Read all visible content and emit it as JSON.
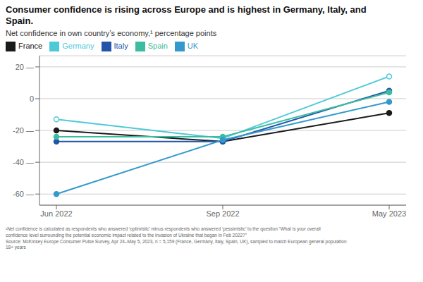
{
  "chart_data": {
    "type": "line",
    "title": "Consumer confidence is rising across Europe and is highest in Germany, Italy, and\nSpain.",
    "subtitle": "Net confidence in own country’s economy,¹ percentage points",
    "footnote": "¹Net confidence is calculated as respondents who answered ‘optimistic’ minus respondents who answered ‘pessimistic’ to the question “What is your overall\nconfidence level surrounding the potential economic impact related to the invasion of Ukraine that began in Feb 2022?”\nSource: McKinsey Europe Consumer Pulse Survey, Apr 24–May 5, 2023, n = 5,159 (France, Germany, Italy, Spain, UK), sampled to match European general population\n18+ years",
    "categories": [
      "Jun 2022",
      "Sep 2022",
      "May 2023"
    ],
    "series": [
      {
        "name": "France",
        "color": "#1a1a1a",
        "values": [
          -20,
          -27,
          -9
        ]
      },
      {
        "name": "Germany",
        "color": "#4ec9d8",
        "values": [
          -13,
          -25,
          14
        ],
        "marker": "ring"
      },
      {
        "name": "Italy",
        "color": "#2255aa",
        "values": [
          -27,
          -27,
          5
        ]
      },
      {
        "name": "Spain",
        "color": "#3dbda0",
        "values": [
          -24,
          -24,
          4
        ]
      },
      {
        "name": "UK",
        "color": "#3399cc",
        "values": [
          -60,
          -26,
          -2
        ]
      }
    ],
    "marker": "circle",
    "ylim": [
      -67,
      27
    ],
    "yticks": [
      {
        "value": 20,
        "label": "20 —"
      },
      0,
      {
        "value": -20,
        "label": "-20 —"
      },
      {
        "value": -40,
        "label": "-40 —"
      },
      {
        "value": -60,
        "label": "-60 —"
      }
    ],
    "grid": true,
    "legend": "top"
  }
}
